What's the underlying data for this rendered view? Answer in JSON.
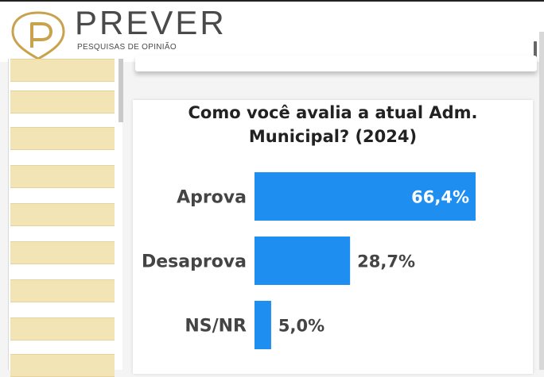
{
  "brand": {
    "name": "PREVER",
    "tagline": "PESQUISAS DE OPINIÃO",
    "gold": "#c9a24e",
    "text_color": "#4a4a4a"
  },
  "chart_data": {
    "type": "bar",
    "orientation": "horizontal",
    "title_lines": [
      "Como você avalia a atual Adm.",
      "Municipal? (2024)"
    ],
    "categories": [
      "Aprova",
      "Desaprova",
      "NS/NR"
    ],
    "values": [
      66.4,
      28.7,
      5.0
    ],
    "value_labels": [
      "66,4%",
      "28,7%",
      "5,0%"
    ],
    "xlim": [
      0,
      66.4
    ],
    "bar_color": "#1f8ef1",
    "grid": false,
    "legend": "none"
  }
}
